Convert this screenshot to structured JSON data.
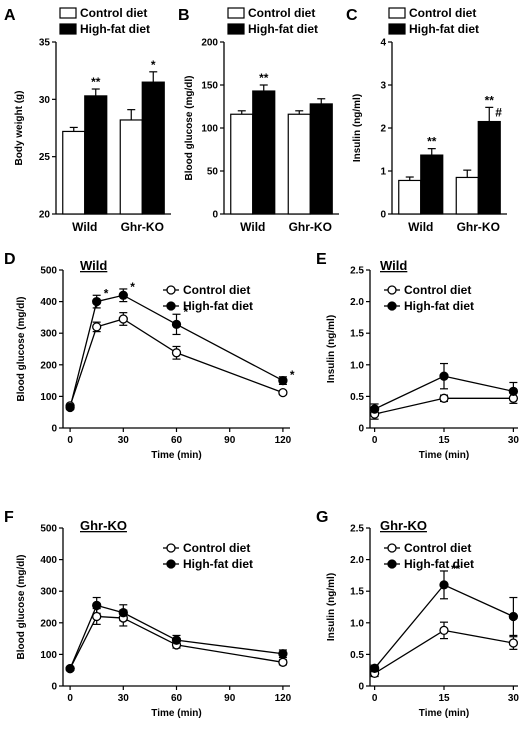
{
  "chart_data": [
    {
      "panel": "A",
      "type": "bar",
      "ylabel": "Body weight (g)",
      "ylim": [
        20,
        35
      ],
      "yticks": [
        "20",
        "25",
        "30",
        "35"
      ],
      "categories": [
        "Wild",
        "Ghr-KO"
      ],
      "series": [
        {
          "name": "Control diet",
          "fill": "#ffffff",
          "values": [
            27.2,
            28.2
          ],
          "err": [
            0.35,
            0.9
          ]
        },
        {
          "name": "High-fat diet",
          "fill": "#000000",
          "values": [
            30.3,
            31.5
          ],
          "err": [
            0.6,
            0.9
          ]
        }
      ],
      "annotations": [
        [
          "**",
          ""
        ],
        [
          "*",
          ""
        ]
      ]
    },
    {
      "panel": "B",
      "type": "bar",
      "ylabel": "Blood glucose (mg/dl)",
      "ylim": [
        0,
        200
      ],
      "yticks": [
        "0",
        "50",
        "100",
        "150",
        "200"
      ],
      "categories": [
        "Wild",
        "Ghr-KO"
      ],
      "series": [
        {
          "name": "Control diet",
          "fill": "#ffffff",
          "values": [
            116,
            116
          ],
          "err": [
            4,
            4
          ]
        },
        {
          "name": "High-fat diet",
          "fill": "#000000",
          "values": [
            143,
            128
          ],
          "err": [
            7,
            6
          ]
        }
      ],
      "annotations": [
        [
          "**",
          ""
        ],
        [
          "",
          ""
        ]
      ]
    },
    {
      "panel": "C",
      "type": "bar",
      "ylabel": "Insulin (ng/ml)",
      "ylim": [
        0,
        4
      ],
      "yticks": [
        "0",
        "1",
        "2",
        "3",
        "4"
      ],
      "categories": [
        "Wild",
        "Ghr-KO"
      ],
      "series": [
        {
          "name": "Control diet",
          "fill": "#ffffff",
          "values": [
            0.78,
            0.85
          ],
          "err": [
            0.08,
            0.17
          ]
        },
        {
          "name": "High-fat diet",
          "fill": "#000000",
          "values": [
            1.37,
            2.15
          ],
          "err": [
            0.15,
            0.33
          ]
        }
      ],
      "annotations": [
        [
          "**",
          ""
        ],
        [
          "**",
          "#"
        ]
      ]
    },
    {
      "panel": "D",
      "type": "line",
      "group": "Wild",
      "xlabel": "Time (min)",
      "ylabel": "Blood glucose (mg/dl)",
      "x": [
        0,
        15,
        30,
        60,
        120
      ],
      "xlim": [
        -4,
        124
      ],
      "xticks": [
        0,
        30,
        60,
        90,
        120
      ],
      "ylim": [
        0,
        500
      ],
      "yticks": [
        0,
        100,
        200,
        300,
        400,
        500
      ],
      "series": [
        {
          "name": "Control diet",
          "marker": "open",
          "values": [
            70,
            320,
            345,
            238,
            112
          ],
          "err": [
            5,
            15,
            20,
            20,
            6
          ]
        },
        {
          "name": "High-fat diet",
          "marker": "filled",
          "values": [
            65,
            400,
            420,
            328,
            150
          ],
          "err": [
            5,
            20,
            20,
            32,
            12
          ]
        }
      ],
      "stars": [
        "",
        "*",
        "*",
        "*",
        "*"
      ]
    },
    {
      "panel": "E",
      "type": "line",
      "group": "Wild",
      "xlabel": "Time (min)",
      "ylabel": "Insulin (ng/ml)",
      "x": [
        0,
        15,
        30
      ],
      "xlim": [
        -1,
        31
      ],
      "xticks": [
        0,
        15,
        30
      ],
      "ylim": [
        0,
        2.5
      ],
      "yticks": [
        "0",
        "0.5",
        "1.0",
        "1.5",
        "2.0",
        "2.5"
      ],
      "series": [
        {
          "name": "Control diet",
          "marker": "open",
          "values": [
            0.22,
            0.47,
            0.47
          ],
          "err": [
            0.08,
            0.05,
            0.08
          ]
        },
        {
          "name": "High-fat diet",
          "marker": "filled",
          "values": [
            0.3,
            0.82,
            0.58
          ],
          "err": [
            0.08,
            0.2,
            0.14
          ]
        }
      ],
      "stars": [
        "",
        "",
        ""
      ]
    },
    {
      "panel": "F",
      "type": "line",
      "group": "Ghr-KO",
      "xlabel": "Time (min)",
      "ylabel": "Blood glucose (mg/dl)",
      "x": [
        0,
        15,
        30,
        60,
        120
      ],
      "xlim": [
        -4,
        124
      ],
      "xticks": [
        0,
        30,
        60,
        90,
        120
      ],
      "ylim": [
        0,
        500
      ],
      "yticks": [
        0,
        100,
        200,
        300,
        400,
        500
      ],
      "series": [
        {
          "name": "Control diet",
          "marker": "open",
          "values": [
            55,
            220,
            215,
            130,
            75
          ],
          "err": [
            5,
            25,
            25,
            10,
            8
          ]
        },
        {
          "name": "High-fat diet",
          "marker": "filled",
          "values": [
            55,
            255,
            232,
            145,
            102
          ],
          "err": [
            5,
            25,
            25,
            15,
            12
          ]
        }
      ],
      "stars": [
        "",
        "",
        "",
        "",
        ""
      ]
    },
    {
      "panel": "G",
      "type": "line",
      "group": "Ghr-KO",
      "xlabel": "Time (min)",
      "ylabel": "Insulin (ng/ml)",
      "x": [
        0,
        15,
        30
      ],
      "xlim": [
        -1,
        31
      ],
      "xticks": [
        0,
        15,
        30
      ],
      "ylim": [
        0,
        2.5
      ],
      "yticks": [
        "0",
        "0.5",
        "1.0",
        "1.5",
        "2.0",
        "2.5"
      ],
      "series": [
        {
          "name": "Control diet",
          "marker": "open",
          "values": [
            0.2,
            0.88,
            0.68
          ],
          "err": [
            0.05,
            0.13,
            0.1
          ]
        },
        {
          "name": "High-fat diet",
          "marker": "filled",
          "values": [
            0.28,
            1.6,
            1.1
          ],
          "err": [
            0.05,
            0.22,
            0.3
          ]
        }
      ],
      "stars": [
        "",
        "**",
        ""
      ]
    }
  ]
}
